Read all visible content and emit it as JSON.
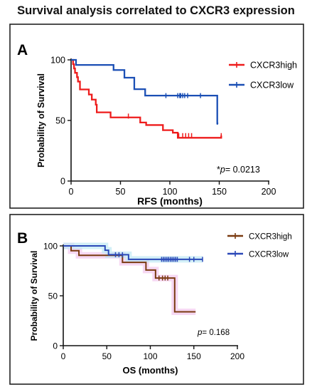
{
  "title": "Survival analysis correlated to CXCR3 expression",
  "chart_data": [
    {
      "type": "line",
      "subtype": "kaplan-meier",
      "panel_label": "A",
      "xlabel": "RFS (months)",
      "ylabel": "Probability of Survival",
      "xlim": [
        0,
        200
      ],
      "ylim": [
        0,
        100
      ],
      "xticks": [
        0,
        50,
        100,
        150,
        200
      ],
      "yticks": [
        0,
        50,
        100
      ],
      "xtick_labels": [
        "0",
        "50",
        "100",
        "150",
        "200"
      ],
      "ytick_labels": [
        "0",
        "50",
        "100"
      ],
      "grid": false,
      "legend_position": "top-right",
      "annotation": {
        "prefix": "*",
        "italic": "p",
        "rest": "= 0.0213"
      },
      "series": [
        {
          "name": "CXCR3high",
          "color": "#ee1c1c",
          "steps": [
            [
              0,
              100
            ],
            [
              2,
              96.4
            ],
            [
              3,
              92.9
            ],
            [
              4,
              89.3
            ],
            [
              6,
              85.7
            ],
            [
              7,
              82.1
            ],
            [
              9,
              75.6
            ],
            [
              18,
              71.4
            ],
            [
              21,
              67.2
            ],
            [
              25,
              63.0
            ],
            [
              26,
              56.7
            ],
            [
              40,
              52.5
            ],
            [
              70,
              48.3
            ],
            [
              76,
              46.2
            ],
            [
              93,
              42.0
            ],
            [
              103,
              39.9
            ],
            [
              108,
              35.7
            ],
            [
              152,
              37.6
            ]
          ],
          "censored": [
            [
              58,
              53.6
            ],
            [
              109,
              37.5
            ],
            [
              113,
              37.5
            ],
            [
              116,
              37.5
            ],
            [
              119,
              37.5
            ],
            [
              122,
              37.5
            ],
            [
              152,
              37.5
            ]
          ]
        },
        {
          "name": "CXCR3low",
          "color": "#1b4fb5",
          "steps": [
            [
              0,
              100
            ],
            [
              5,
              95.8
            ],
            [
              43,
              91.6
            ],
            [
              54,
              85.3
            ],
            [
              64,
              75.8
            ],
            [
              75,
              70.5
            ],
            [
              148,
              47.6
            ],
            [
              149,
              47.6
            ]
          ],
          "censored": [
            [
              96,
              70.5
            ],
            [
              108,
              70.5
            ],
            [
              110,
              70.5
            ],
            [
              111,
              70.5
            ],
            [
              113,
              70.5
            ],
            [
              115,
              70.5
            ],
            [
              118,
              70.5
            ],
            [
              131,
              70.5
            ],
            [
              148,
              48.5
            ]
          ]
        }
      ]
    },
    {
      "type": "line",
      "subtype": "kaplan-meier",
      "panel_label": "B",
      "xlabel": "OS (months)",
      "ylabel": "Probability of Survival",
      "xlim": [
        0,
        200
      ],
      "ylim": [
        0,
        100
      ],
      "xticks": [
        0,
        50,
        100,
        150,
        200
      ],
      "yticks": [
        0,
        50,
        100
      ],
      "xtick_labels": [
        "0",
        "50",
        "100",
        "150",
        "200"
      ],
      "ytick_labels": [
        "0",
        "50",
        "100"
      ],
      "grid": false,
      "legend_position": "top-right",
      "annotation": {
        "prefix": "",
        "italic": "p",
        "rest": "= 0.168"
      },
      "series": [
        {
          "name": "CXCR3high",
          "color": "#7a3a10",
          "band_color": "#f2c8ee",
          "steps": [
            [
              0,
              100
            ],
            [
              9,
              95.2
            ],
            [
              18,
              90.5
            ],
            [
              68,
              83.5
            ],
            [
              95,
              75.8
            ],
            [
              106,
              67.8
            ],
            [
              128,
              33.9
            ],
            [
              152,
              33.9
            ]
          ],
          "censored": [
            [
              110,
              67.8
            ],
            [
              114,
              67.8
            ],
            [
              117,
              67.8
            ],
            [
              120,
              67.8
            ]
          ]
        },
        {
          "name": "CXCR3low",
          "color": "#2b48b8",
          "band_color": "#bfe8f4",
          "steps": [
            [
              0,
              100
            ],
            [
              48,
              95.6
            ],
            [
              52,
              91.2
            ],
            [
              75,
              86.5
            ],
            [
              160,
              86.5
            ]
          ],
          "censored": [
            [
              60,
              91.2
            ],
            [
              64,
              91.2
            ],
            [
              68,
              91.2
            ],
            [
              113,
              86.5
            ],
            [
              115,
              86.5
            ],
            [
              117,
              86.5
            ],
            [
              119,
              86.5
            ],
            [
              121,
              86.5
            ],
            [
              123,
              86.5
            ],
            [
              125,
              86.5
            ],
            [
              127,
              86.5
            ],
            [
              129,
              86.5
            ],
            [
              131,
              86.5
            ],
            [
              145,
              86.5
            ],
            [
              150,
              86.5
            ],
            [
              160,
              86.5
            ]
          ]
        }
      ]
    }
  ]
}
